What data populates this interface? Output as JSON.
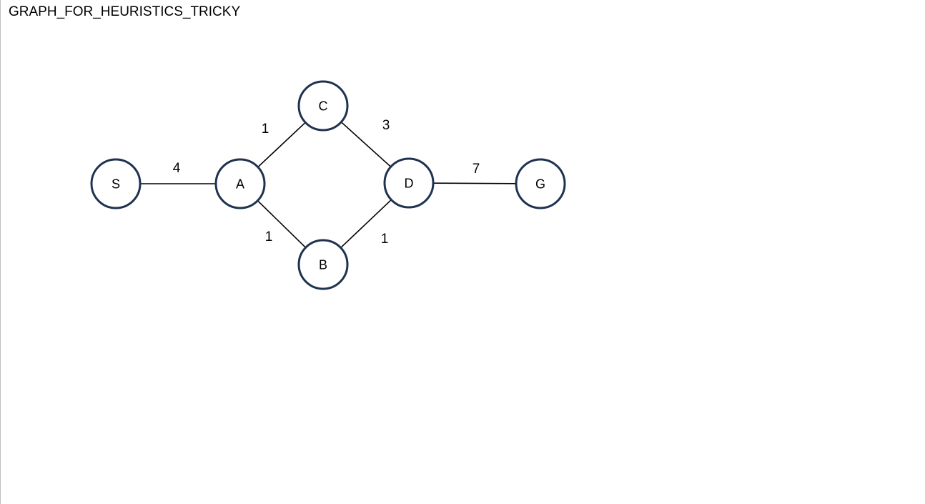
{
  "title": "GRAPH_FOR_HEURISTICS_TRICKY",
  "colors": {
    "node_stroke": "#1f3250",
    "edge": "#000000",
    "text": "#000000"
  },
  "graph": {
    "nodes": [
      {
        "id": "S",
        "label": "S"
      },
      {
        "id": "A",
        "label": "A"
      },
      {
        "id": "C",
        "label": "C"
      },
      {
        "id": "B",
        "label": "B"
      },
      {
        "id": "D",
        "label": "D"
      },
      {
        "id": "G",
        "label": "G"
      }
    ],
    "edges": [
      {
        "from": "S",
        "to": "A",
        "weight": "4"
      },
      {
        "from": "A",
        "to": "C",
        "weight": "1"
      },
      {
        "from": "A",
        "to": "B",
        "weight": "1"
      },
      {
        "from": "C",
        "to": "D",
        "weight": "3"
      },
      {
        "from": "B",
        "to": "D",
        "weight": "1"
      },
      {
        "from": "D",
        "to": "G",
        "weight": "7"
      }
    ]
  }
}
